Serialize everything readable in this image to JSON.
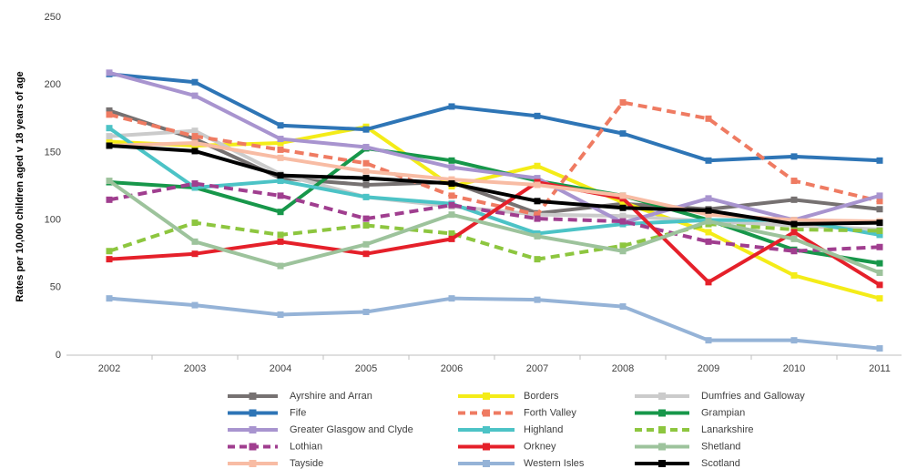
{
  "chart_data": {
    "type": "line",
    "y_label": "Rates per 10,000 children aged v 18 years of age",
    "categories": [
      "2002",
      "2003",
      "2004",
      "2005",
      "2006",
      "2007",
      "2008",
      "2009",
      "2010",
      "2011"
    ],
    "ylim": [
      0,
      250
    ],
    "yticks": [
      0,
      50,
      100,
      150,
      200,
      250
    ],
    "series": [
      {
        "name": "Ayrshire and Arran",
        "color": "#767171",
        "dashed": false,
        "values": [
          181,
          160,
          131,
          126,
          128,
          105,
          112,
          108,
          115,
          108
        ]
      },
      {
        "name": "Borders",
        "color": "#f4ec18",
        "dashed": false,
        "values": [
          158,
          155,
          157,
          169,
          125,
          140,
          113,
          91,
          59,
          42
        ]
      },
      {
        "name": "Dumfries and Galloway",
        "color": "#cbcbcb",
        "dashed": false,
        "values": [
          162,
          166,
          134,
          117,
          110,
          104,
          103,
          99,
          96,
          93
        ]
      },
      {
        "name": "Fife",
        "color": "#2e75b6",
        "dashed": false,
        "values": [
          208,
          202,
          170,
          167,
          184,
          177,
          164,
          144,
          147,
          144
        ]
      },
      {
        "name": "Forth Valley",
        "color": "#ef7b62",
        "dashed": true,
        "values": [
          178,
          162,
          152,
          142,
          118,
          104,
          187,
          175,
          129,
          114
        ]
      },
      {
        "name": "Grampian",
        "color": "#17974a",
        "dashed": false,
        "values": [
          128,
          124,
          106,
          153,
          144,
          129,
          118,
          100,
          78,
          68
        ]
      },
      {
        "name": "Greater Glasgow and Clyde",
        "color": "#a894cf",
        "dashed": false,
        "values": [
          209,
          192,
          160,
          154,
          139,
          131,
          98,
          116,
          100,
          118
        ]
      },
      {
        "name": "Highland",
        "color": "#4cc3c6",
        "dashed": false,
        "values": [
          168,
          124,
          129,
          117,
          112,
          90,
          97,
          100,
          100,
          89
        ]
      },
      {
        "name": "Lanarkshire",
        "color": "#8dc63f",
        "dashed": true,
        "values": [
          77,
          98,
          89,
          96,
          90,
          71,
          81,
          97,
          93,
          92
        ]
      },
      {
        "name": "Lothian",
        "color": "#a03e8f",
        "dashed": true,
        "values": [
          115,
          127,
          118,
          101,
          111,
          101,
          99,
          84,
          77,
          80
        ]
      },
      {
        "name": "Orkney",
        "color": "#e5202a",
        "dashed": false,
        "values": [
          71,
          75,
          84,
          75,
          86,
          128,
          116,
          54,
          91,
          52
        ]
      },
      {
        "name": "Shetland",
        "color": "#9dc39c",
        "dashed": false,
        "values": [
          129,
          84,
          66,
          82,
          104,
          88,
          77,
          99,
          86,
          61
        ]
      },
      {
        "name": "Tayside",
        "color": "#f8bca4",
        "dashed": false,
        "values": [
          155,
          157,
          146,
          136,
          130,
          126,
          118,
          104,
          100,
          99
        ]
      },
      {
        "name": "Western Isles",
        "color": "#95b3d7",
        "dashed": false,
        "values": [
          42,
          37,
          30,
          32,
          42,
          41,
          36,
          11,
          11,
          5
        ]
      },
      {
        "name": "Scotland",
        "color": "#000000",
        "dashed": false,
        "values": [
          155,
          151,
          133,
          131,
          127,
          114,
          109,
          107,
          97,
          98
        ]
      }
    ]
  }
}
